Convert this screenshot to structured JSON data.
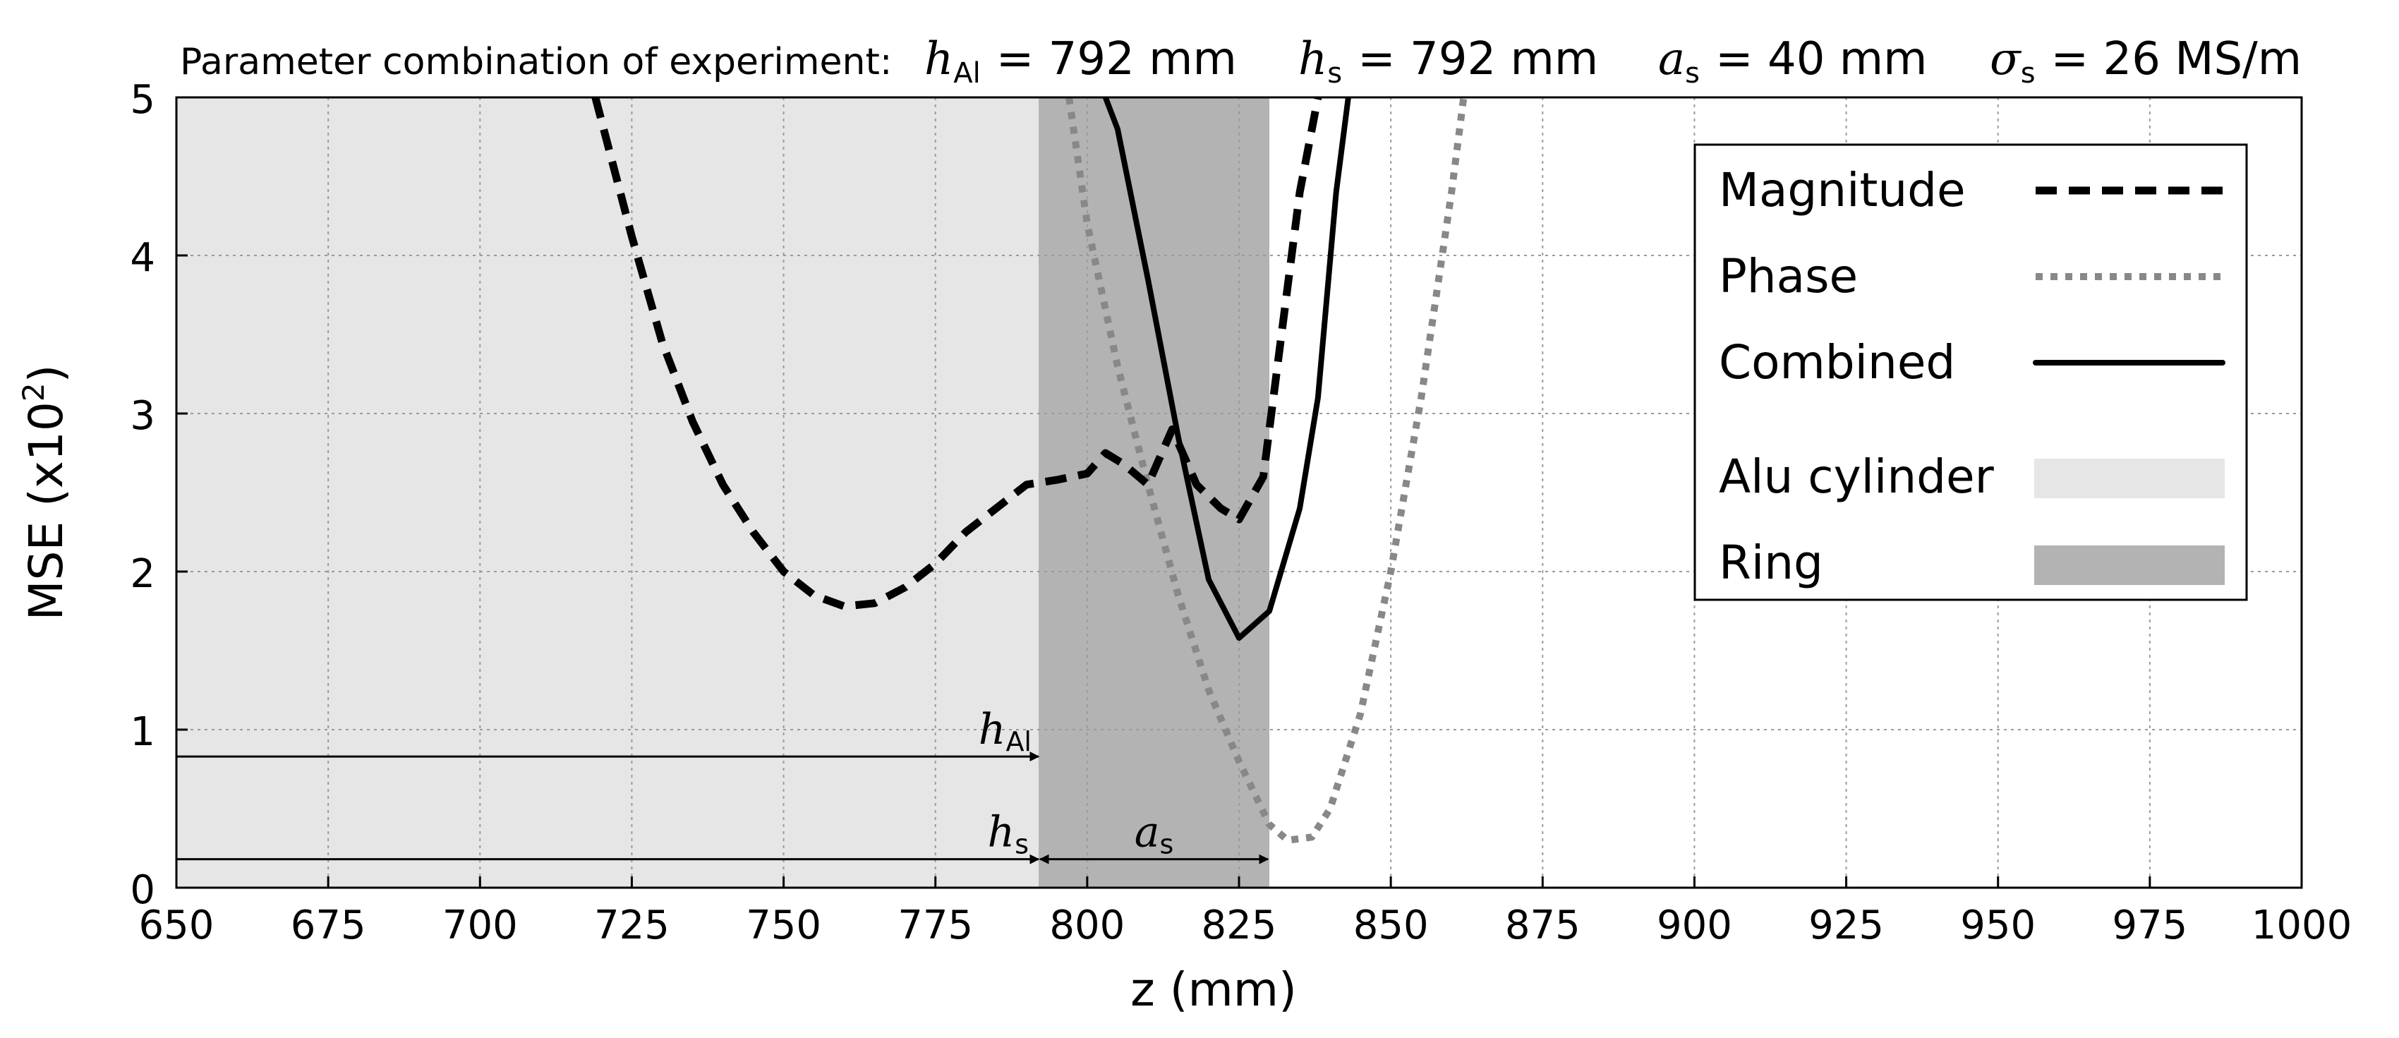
{
  "chart_data": {
    "type": "line",
    "title": "Parameter combination of experiment:",
    "parameters": [
      {
        "symbol": "h",
        "subscript": "Al",
        "value": "= 792 mm"
      },
      {
        "symbol": "h",
        "subscript": "s",
        "value": "= 792 mm"
      },
      {
        "symbol": "a",
        "subscript": "s",
        "value": "= 40 mm"
      },
      {
        "symbol": "σ",
        "subscript": "s",
        "value": "= 26 MS/m"
      }
    ],
    "xlabel": "z  (mm)",
    "ylabel": "MSE (x10",
    "ylabel_sup": "2",
    "ylabel_end": ")",
    "xlim": [
      650,
      1000
    ],
    "ylim": [
      0,
      5
    ],
    "xticks": [
      650,
      675,
      700,
      725,
      750,
      775,
      800,
      825,
      850,
      875,
      900,
      925,
      950,
      975,
      1000
    ],
    "yticks": [
      0,
      1,
      2,
      3,
      4,
      5
    ],
    "grid": true,
    "legend_position": "top-right",
    "series": [
      {
        "name": "Magnitude",
        "style": "dashed",
        "color": "#000000",
        "x": [
          719,
          725,
          730,
          735,
          740,
          745,
          750,
          755,
          760,
          765,
          770,
          775,
          780,
          785,
          790,
          795,
          800,
          803,
          806,
          810,
          814,
          818,
          822,
          825,
          829,
          832,
          835,
          838
        ],
        "y": [
          5.0,
          4.12,
          3.45,
          2.95,
          2.55,
          2.25,
          2.0,
          1.85,
          1.78,
          1.8,
          1.9,
          2.05,
          2.25,
          2.4,
          2.55,
          2.58,
          2.62,
          2.75,
          2.68,
          2.55,
          2.9,
          2.55,
          2.4,
          2.33,
          2.6,
          3.5,
          4.4,
          5.0
        ]
      },
      {
        "name": "Phase",
        "style": "dotted",
        "color": "#888888",
        "x": [
          797,
          800,
          805,
          810,
          815,
          820,
          825,
          830,
          833,
          837,
          840,
          845,
          850,
          855,
          860,
          862
        ],
        "y": [
          5.0,
          4.2,
          3.3,
          2.55,
          1.85,
          1.25,
          0.8,
          0.4,
          0.3,
          0.32,
          0.5,
          1.1,
          2.0,
          3.1,
          4.4,
          5.0
        ]
      },
      {
        "name": "Combined",
        "style": "solid",
        "color": "#000000",
        "x": [
          803,
          805,
          810,
          815,
          820,
          825,
          830,
          835,
          838,
          841,
          843
        ],
        "y": [
          5.0,
          4.8,
          3.85,
          2.85,
          1.95,
          1.58,
          1.75,
          2.4,
          3.1,
          4.4,
          5.0
        ]
      }
    ],
    "regions": [
      {
        "name": "Alu cylinder",
        "x_range": [
          650,
          792
        ],
        "color": "#e6e6e6"
      },
      {
        "name": "Ring",
        "x_range": [
          792,
          830
        ],
        "color": "#b3b3b3"
      }
    ],
    "annotations": [
      {
        "id": "hAl",
        "symbol": "h",
        "subscript": "Al",
        "y": 0.83,
        "x_range": [
          650,
          792
        ]
      },
      {
        "id": "hs",
        "symbol": "h",
        "subscript": "s",
        "y": 0.18,
        "x_range": [
          650,
          792
        ]
      },
      {
        "id": "as",
        "symbol": "a",
        "subscript": "s",
        "y": 0.18,
        "x_range": [
          792,
          830
        ]
      }
    ]
  }
}
